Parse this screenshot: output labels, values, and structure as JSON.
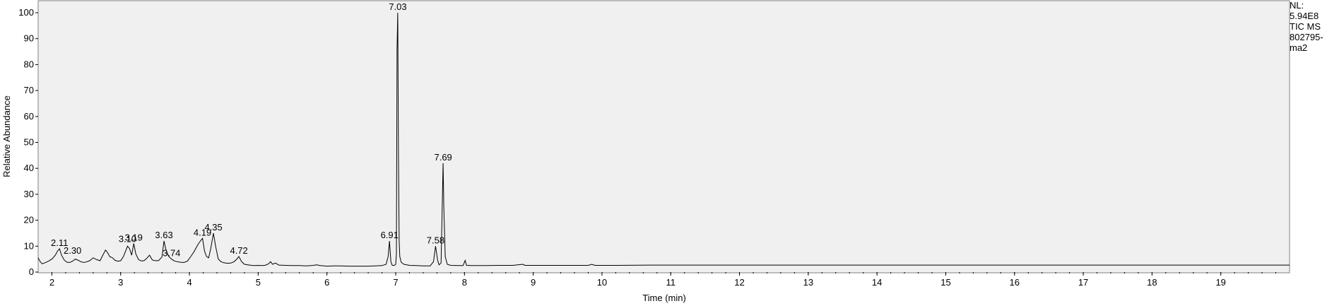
{
  "chart_data": {
    "type": "line",
    "title": "",
    "xlabel": "Time (min)",
    "ylabel": "Relative Abundance",
    "xlim": [
      1.8,
      20.0
    ],
    "ylim": [
      0,
      100
    ],
    "x_ticks": [
      "2",
      "3",
      "4",
      "5",
      "6",
      "7",
      "8",
      "9",
      "10",
      "11",
      "12",
      "13",
      "14",
      "15",
      "16",
      "17",
      "18",
      "19"
    ],
    "y_ticks": [
      "0",
      "10",
      "20",
      "30",
      "40",
      "50",
      "60",
      "70",
      "80",
      "90",
      "100"
    ],
    "grid": false,
    "info_labels": [
      "NL:",
      "5.94E8",
      "TIC  MS",
      "802795-",
      "ma2"
    ],
    "peak_labels": [
      {
        "x": 2.11,
        "y": 9,
        "label": "2.11"
      },
      {
        "x": 2.3,
        "y": 6,
        "label": "2.30"
      },
      {
        "x": 3.1,
        "y": 10.5,
        "label": "3.10"
      },
      {
        "x": 3.19,
        "y": 11,
        "label": "3.19"
      },
      {
        "x": 3.63,
        "y": 12,
        "label": "3.63"
      },
      {
        "x": 3.74,
        "y": 5,
        "label": "3.74"
      },
      {
        "x": 4.19,
        "y": 13,
        "label": "4.19"
      },
      {
        "x": 4.35,
        "y": 15,
        "label": "4.35"
      },
      {
        "x": 4.72,
        "y": 6,
        "label": "4.72"
      },
      {
        "x": 6.91,
        "y": 12,
        "label": "6.91"
      },
      {
        "x": 7.03,
        "y": 100,
        "label": "7.03"
      },
      {
        "x": 7.58,
        "y": 10,
        "label": "7.58"
      },
      {
        "x": 7.69,
        "y": 42,
        "label": "7.69"
      }
    ],
    "series": [
      {
        "x": [
          1.8,
          1.83,
          1.86,
          1.9,
          1.95,
          2.0,
          2.05,
          2.08,
          2.11,
          2.14,
          2.18,
          2.22,
          2.26,
          2.3,
          2.34,
          2.38,
          2.42,
          2.46,
          2.5,
          2.55,
          2.6,
          2.65,
          2.7,
          2.74,
          2.78,
          2.81,
          2.84,
          2.88,
          2.92,
          2.96,
          3.0,
          3.04,
          3.07,
          3.1,
          3.13,
          3.16,
          3.19,
          3.22,
          3.26,
          3.3,
          3.34,
          3.38,
          3.42,
          3.46,
          3.5,
          3.55,
          3.6,
          3.63,
          3.66,
          3.7,
          3.74,
          3.78,
          3.82,
          3.87,
          3.92,
          3.97,
          4.02,
          4.07,
          4.12,
          4.16,
          4.19,
          4.22,
          4.25,
          4.28,
          4.31,
          4.35,
          4.38,
          4.42,
          4.46,
          4.5,
          4.55,
          4.6,
          4.65,
          4.69,
          4.72,
          4.76,
          4.8,
          4.85,
          4.9,
          4.95,
          5.0,
          5.05,
          5.1,
          5.15,
          5.18,
          5.21,
          5.25,
          5.3,
          5.4,
          5.5,
          5.6,
          5.7,
          5.8,
          5.85,
          5.9,
          6.0,
          6.1,
          6.2,
          6.3,
          6.4,
          6.5,
          6.6,
          6.7,
          6.8,
          6.86,
          6.89,
          6.91,
          6.93,
          6.95,
          6.98,
          7.0,
          7.01,
          7.02,
          7.03,
          7.04,
          7.05,
          7.06,
          7.08,
          7.12,
          7.2,
          7.3,
          7.4,
          7.5,
          7.55,
          7.58,
          7.61,
          7.63,
          7.66,
          7.68,
          7.69,
          7.7,
          7.72,
          7.75,
          7.8,
          7.9,
          7.98,
          8.01,
          8.03,
          8.1,
          8.3,
          8.5,
          8.7,
          8.85,
          8.88,
          9.0,
          9.3,
          9.6,
          9.8,
          9.85,
          9.9,
          10.2,
          10.7,
          11.0,
          11.5,
          12.0,
          13.0,
          14.0,
          15.0,
          16.0,
          17.0,
          18.0,
          19.0,
          19.5,
          20.0
        ],
        "y": [
          5.5,
          4.0,
          3.2,
          3.6,
          4.2,
          5.0,
          6.5,
          8.0,
          9.0,
          6.5,
          4.6,
          3.8,
          3.7,
          4.2,
          5.0,
          4.6,
          4.0,
          3.7,
          3.9,
          4.4,
          5.5,
          4.8,
          4.4,
          6.5,
          8.5,
          7.5,
          6.0,
          5.5,
          4.5,
          4.2,
          4.4,
          6.0,
          8.0,
          10.0,
          9.0,
          6.5,
          11.0,
          7.0,
          4.8,
          4.3,
          4.4,
          5.3,
          6.5,
          4.7,
          4.4,
          4.4,
          5.8,
          12.0,
          8.5,
          6.0,
          5.0,
          4.3,
          4.0,
          3.8,
          3.7,
          4.2,
          6.0,
          8.0,
          10.5,
          12.0,
          13.0,
          8.0,
          6.0,
          5.5,
          9.0,
          15.0,
          10.0,
          5.0,
          4.0,
          3.6,
          3.4,
          3.5,
          4.0,
          5.0,
          6.0,
          4.0,
          3.0,
          2.8,
          2.6,
          2.5,
          2.6,
          2.5,
          2.6,
          3.2,
          4.0,
          3.0,
          3.5,
          2.7,
          2.6,
          2.5,
          2.5,
          2.4,
          2.6,
          2.8,
          2.5,
          2.3,
          2.4,
          2.4,
          2.3,
          2.3,
          2.3,
          2.3,
          2.4,
          2.5,
          3.0,
          6.0,
          12.0,
          4.0,
          2.6,
          2.6,
          3.0,
          7.0,
          86.0,
          100,
          45.0,
          12.0,
          6.0,
          3.8,
          3.0,
          2.6,
          2.5,
          2.4,
          2.4,
          4.0,
          10.0,
          4.5,
          2.8,
          3.5,
          30.0,
          42.0,
          25.0,
          6.0,
          3.0,
          2.6,
          2.5,
          2.5,
          4.5,
          2.6,
          2.5,
          2.5,
          2.6,
          2.6,
          3.0,
          2.6,
          2.6,
          2.6,
          2.6,
          2.6,
          3.0,
          2.6,
          2.6,
          2.7,
          2.7,
          2.7,
          2.7,
          2.7,
          2.7,
          2.7,
          2.7,
          2.7,
          2.7,
          2.7,
          2.7,
          2.7
        ]
      }
    ]
  }
}
